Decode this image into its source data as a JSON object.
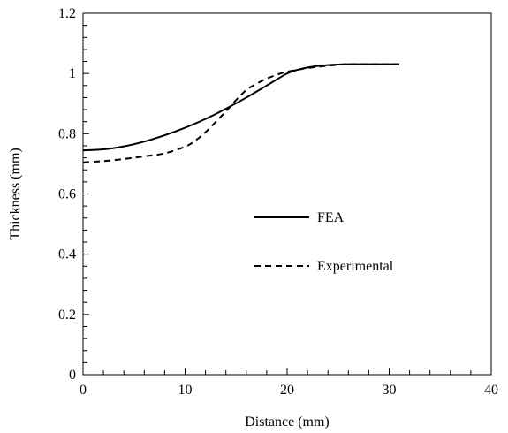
{
  "chart_data": {
    "type": "line",
    "title": "",
    "xlabel": "Distance (mm)",
    "ylabel": "Thickness (mm)",
    "xlim": [
      0,
      40
    ],
    "ylim": [
      0,
      1.2
    ],
    "x_ticks": [
      0,
      10,
      20,
      30,
      40
    ],
    "x_tick_labels": [
      "0",
      "10",
      "20",
      "30",
      "40"
    ],
    "y_ticks": [
      0,
      0.2,
      0.4,
      0.6,
      0.8,
      1,
      1.2
    ],
    "y_tick_labels": [
      "0",
      "0.2",
      "0.4",
      "0.6",
      "0.8",
      "1",
      "1.2"
    ],
    "grid": false,
    "legend_position": "center-right",
    "series": [
      {
        "name": "FEA",
        "line_style": "solid",
        "color": "#000000",
        "x": [
          0,
          2,
          4,
          6,
          8,
          10,
          12,
          14,
          16,
          18,
          20,
          21,
          22,
          23,
          24,
          25,
          26,
          28,
          30,
          31
        ],
        "y": [
          0.745,
          0.748,
          0.758,
          0.774,
          0.795,
          0.82,
          0.849,
          0.883,
          0.92,
          0.96,
          1.0,
          1.012,
          1.02,
          1.025,
          1.028,
          1.03,
          1.031,
          1.031,
          1.031,
          1.031
        ]
      },
      {
        "name": "Experimental",
        "line_style": "dashed",
        "color": "#000000",
        "x": [
          0,
          2,
          4,
          6,
          8,
          10,
          11,
          12,
          13,
          14,
          15,
          16,
          17,
          18,
          19,
          20,
          22,
          24,
          26,
          28,
          30,
          31
        ],
        "y": [
          0.705,
          0.709,
          0.716,
          0.725,
          0.735,
          0.757,
          0.777,
          0.805,
          0.839,
          0.874,
          0.912,
          0.945,
          0.966,
          0.983,
          0.996,
          1.006,
          1.018,
          1.026,
          1.031,
          1.031,
          1.031,
          1.031
        ]
      }
    ]
  }
}
